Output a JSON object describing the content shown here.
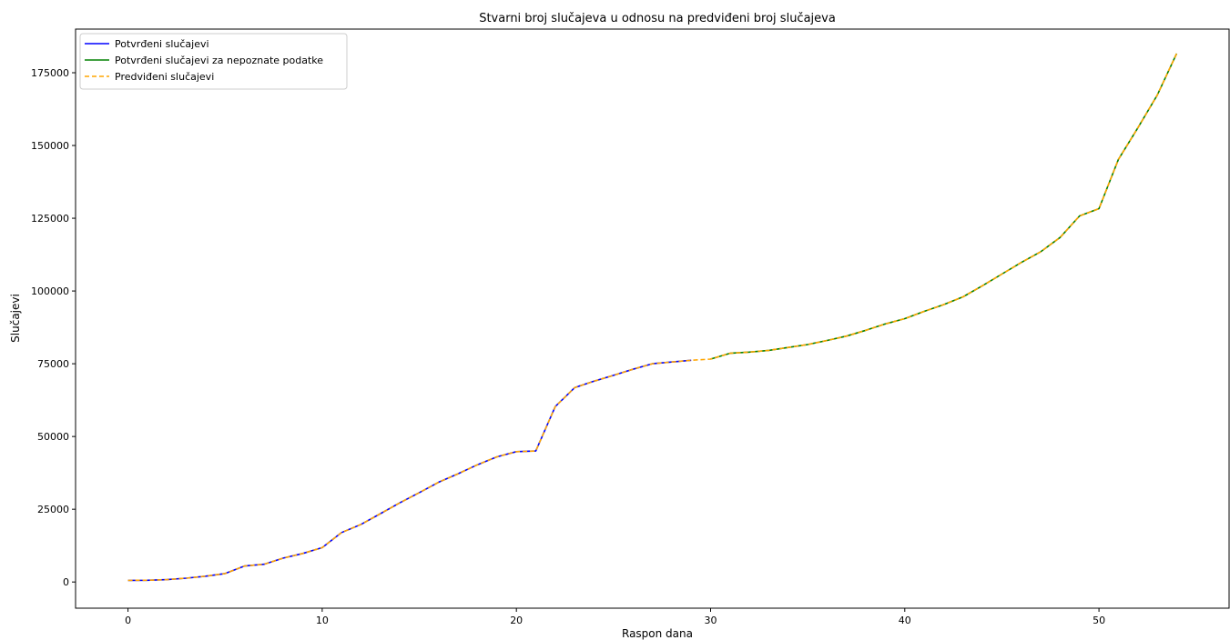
{
  "chart_data": {
    "type": "line",
    "title": "Stvarni broj slučajeva u odnosu na predviđeni broj slučajeva",
    "xlabel": "Raspon dana",
    "ylabel": "Slučajevi",
    "xlim": [
      -2.7,
      56.7
    ],
    "ylim": [
      -9000,
      190000
    ],
    "xticks": [
      0,
      10,
      20,
      30,
      40,
      50
    ],
    "yticks": [
      0,
      25000,
      50000,
      75000,
      100000,
      125000,
      150000,
      175000
    ],
    "grid": false,
    "legend_position": "top-left",
    "series": [
      {
        "name": "Potvrđeni slučajevi",
        "color": "#0000ff",
        "style": "solid",
        "x": [
          0,
          1,
          2,
          3,
          4,
          5,
          6,
          7,
          8,
          9,
          10,
          11,
          12,
          13,
          14,
          15,
          16,
          17,
          18,
          19,
          20,
          21,
          22,
          23,
          24,
          25,
          26,
          27,
          28,
          29
        ],
        "y": [
          550,
          600,
          800,
          1300,
          2000,
          2900,
          5500,
          6100,
          8200,
          9800,
          11800,
          17000,
          19800,
          23500,
          27200,
          30700,
          34300,
          37200,
          40300,
          43000,
          44800,
          45000,
          60300,
          66800,
          69000,
          71000,
          73100,
          75000,
          75600,
          76200
        ]
      },
      {
        "name": "Potvrđeni slučajevi za nepoznate podatke",
        "color": "#008000",
        "style": "solid",
        "x": [
          30,
          31,
          32,
          33,
          34,
          35,
          36,
          37,
          38,
          39,
          40,
          41,
          42,
          43,
          44,
          45,
          46,
          47,
          48,
          49,
          50,
          51,
          52,
          53,
          54
        ],
        "y": [
          76600,
          78600,
          79000,
          79600,
          80600,
          81600,
          83000,
          84500,
          86500,
          88700,
          90500,
          93000,
          95300,
          98000,
          101800,
          105800,
          109800,
          113500,
          118400,
          125800,
          128300,
          145200,
          156000,
          167300,
          181600
        ]
      },
      {
        "name": "Predviđeni slučajevi",
        "color": "#ffa500",
        "style": "dashed",
        "x": [
          0,
          1,
          2,
          3,
          4,
          5,
          6,
          7,
          8,
          9,
          10,
          11,
          12,
          13,
          14,
          15,
          16,
          17,
          18,
          19,
          20,
          21,
          22,
          23,
          24,
          25,
          26,
          27,
          28,
          29,
          30,
          31,
          32,
          33,
          34,
          35,
          36,
          37,
          38,
          39,
          40,
          41,
          42,
          43,
          44,
          45,
          46,
          47,
          48,
          49,
          50,
          51,
          52,
          53,
          54
        ],
        "y": [
          550,
          600,
          800,
          1300,
          2000,
          2900,
          5500,
          6100,
          8200,
          9800,
          11800,
          17000,
          19800,
          23500,
          27200,
          30700,
          34300,
          37200,
          40300,
          43000,
          44800,
          45000,
          60300,
          66800,
          69000,
          71000,
          73100,
          75000,
          75600,
          76200,
          76600,
          78600,
          79000,
          79600,
          80600,
          81600,
          83000,
          84500,
          86500,
          88700,
          90500,
          93000,
          95300,
          98000,
          101800,
          105800,
          109800,
          113500,
          118400,
          125800,
          128300,
          145200,
          156000,
          167300,
          181600
        ]
      }
    ]
  }
}
